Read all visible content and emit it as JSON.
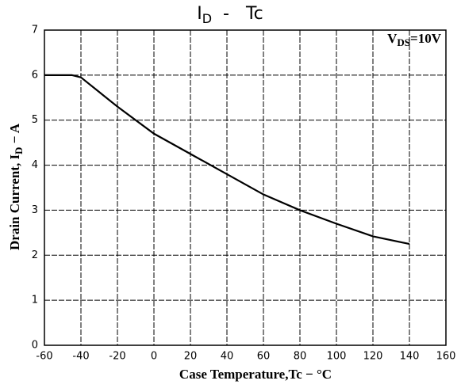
{
  "chart_data": {
    "type": "line",
    "title": {
      "main": "I",
      "sub": "D",
      "rest": "  -   Tc"
    },
    "x_label": "Case Temperature,Tc − °C",
    "y_label": {
      "main": "Drain Current, I",
      "sub": "D",
      "rest": " − A"
    },
    "annotation": {
      "main": "V",
      "sub": "DS",
      "rest": "=10V"
    },
    "xlim": [
      -60,
      160
    ],
    "ylim": [
      0,
      7
    ],
    "xticks": [
      -60,
      -40,
      -20,
      0,
      20,
      40,
      60,
      80,
      100,
      120,
      140,
      160
    ],
    "yticks": [
      0,
      1,
      2,
      3,
      4,
      5,
      6,
      7
    ],
    "grid": true,
    "series": [
      {
        "color": "#000000",
        "x": [
          -60,
          -45,
          -40,
          -20,
          0,
          20,
          40,
          60,
          80,
          100,
          120,
          140
        ],
        "values": [
          6,
          6,
          5.95,
          5.3,
          4.7,
          4.25,
          3.8,
          3.35,
          3.0,
          2.7,
          2.42,
          2.25
        ]
      }
    ]
  }
}
